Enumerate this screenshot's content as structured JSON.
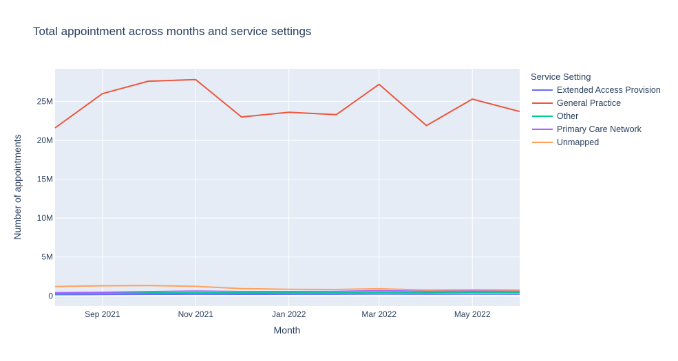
{
  "chart_data": {
    "type": "line",
    "title": "Total appointment across months and service settings",
    "xlabel": "Month",
    "ylabel": "Number of appointments",
    "legend_title": "Service Setting",
    "legend_position": "right",
    "grid": true,
    "x": [
      "2021-08-01",
      "2021-09-01",
      "2021-10-01",
      "2021-11-01",
      "2021-12-01",
      "2022-01-01",
      "2022-02-01",
      "2022-03-01",
      "2022-04-01",
      "2022-05-01",
      "2022-06-01"
    ],
    "xlim": [
      "2021-08-01",
      "2022-06-01"
    ],
    "ylim": [
      -1300000,
      29200000
    ],
    "x_ticks": [
      {
        "date": "2021-09-01",
        "label": "Sep 2021"
      },
      {
        "date": "2021-11-01",
        "label": "Nov 2021"
      },
      {
        "date": "2022-01-01",
        "label": "Jan 2022"
      },
      {
        "date": "2022-03-01",
        "label": "Mar 2022"
      },
      {
        "date": "2022-05-01",
        "label": "May 2022"
      }
    ],
    "y_ticks": [
      {
        "value": 0,
        "label": "0"
      },
      {
        "value": 5000000,
        "label": "5M"
      },
      {
        "value": 10000000,
        "label": "10M"
      },
      {
        "value": 15000000,
        "label": "15M"
      },
      {
        "value": 20000000,
        "label": "20M"
      },
      {
        "value": 25000000,
        "label": "25M"
      }
    ],
    "series": [
      {
        "name": "Extended Access Provision",
        "color": "#636efa",
        "values": [
          160000,
          180000,
          200000,
          210000,
          200000,
          210000,
          210000,
          240000,
          220000,
          240000,
          230000
        ]
      },
      {
        "name": "General Practice",
        "color": "#ef553b",
        "values": [
          21600000,
          26000000,
          27600000,
          27800000,
          23000000,
          23600000,
          23300000,
          27200000,
          21900000,
          25300000,
          23700000
        ]
      },
      {
        "name": "Other",
        "color": "#00cc96",
        "values": [
          300000,
          360000,
          380000,
          390000,
          380000,
          390000,
          400000,
          440000,
          420000,
          470000,
          460000
        ]
      },
      {
        "name": "Primary Care Network",
        "color": "#ab63fa",
        "values": [
          400000,
          460000,
          550000,
          620000,
          560000,
          560000,
          580000,
          660000,
          600000,
          640000,
          620000
        ]
      },
      {
        "name": "Unmapped",
        "color": "#ffa15a",
        "values": [
          1200000,
          1300000,
          1330000,
          1230000,
          940000,
          850000,
          820000,
          920000,
          750000,
          800000,
          760000
        ]
      }
    ]
  }
}
